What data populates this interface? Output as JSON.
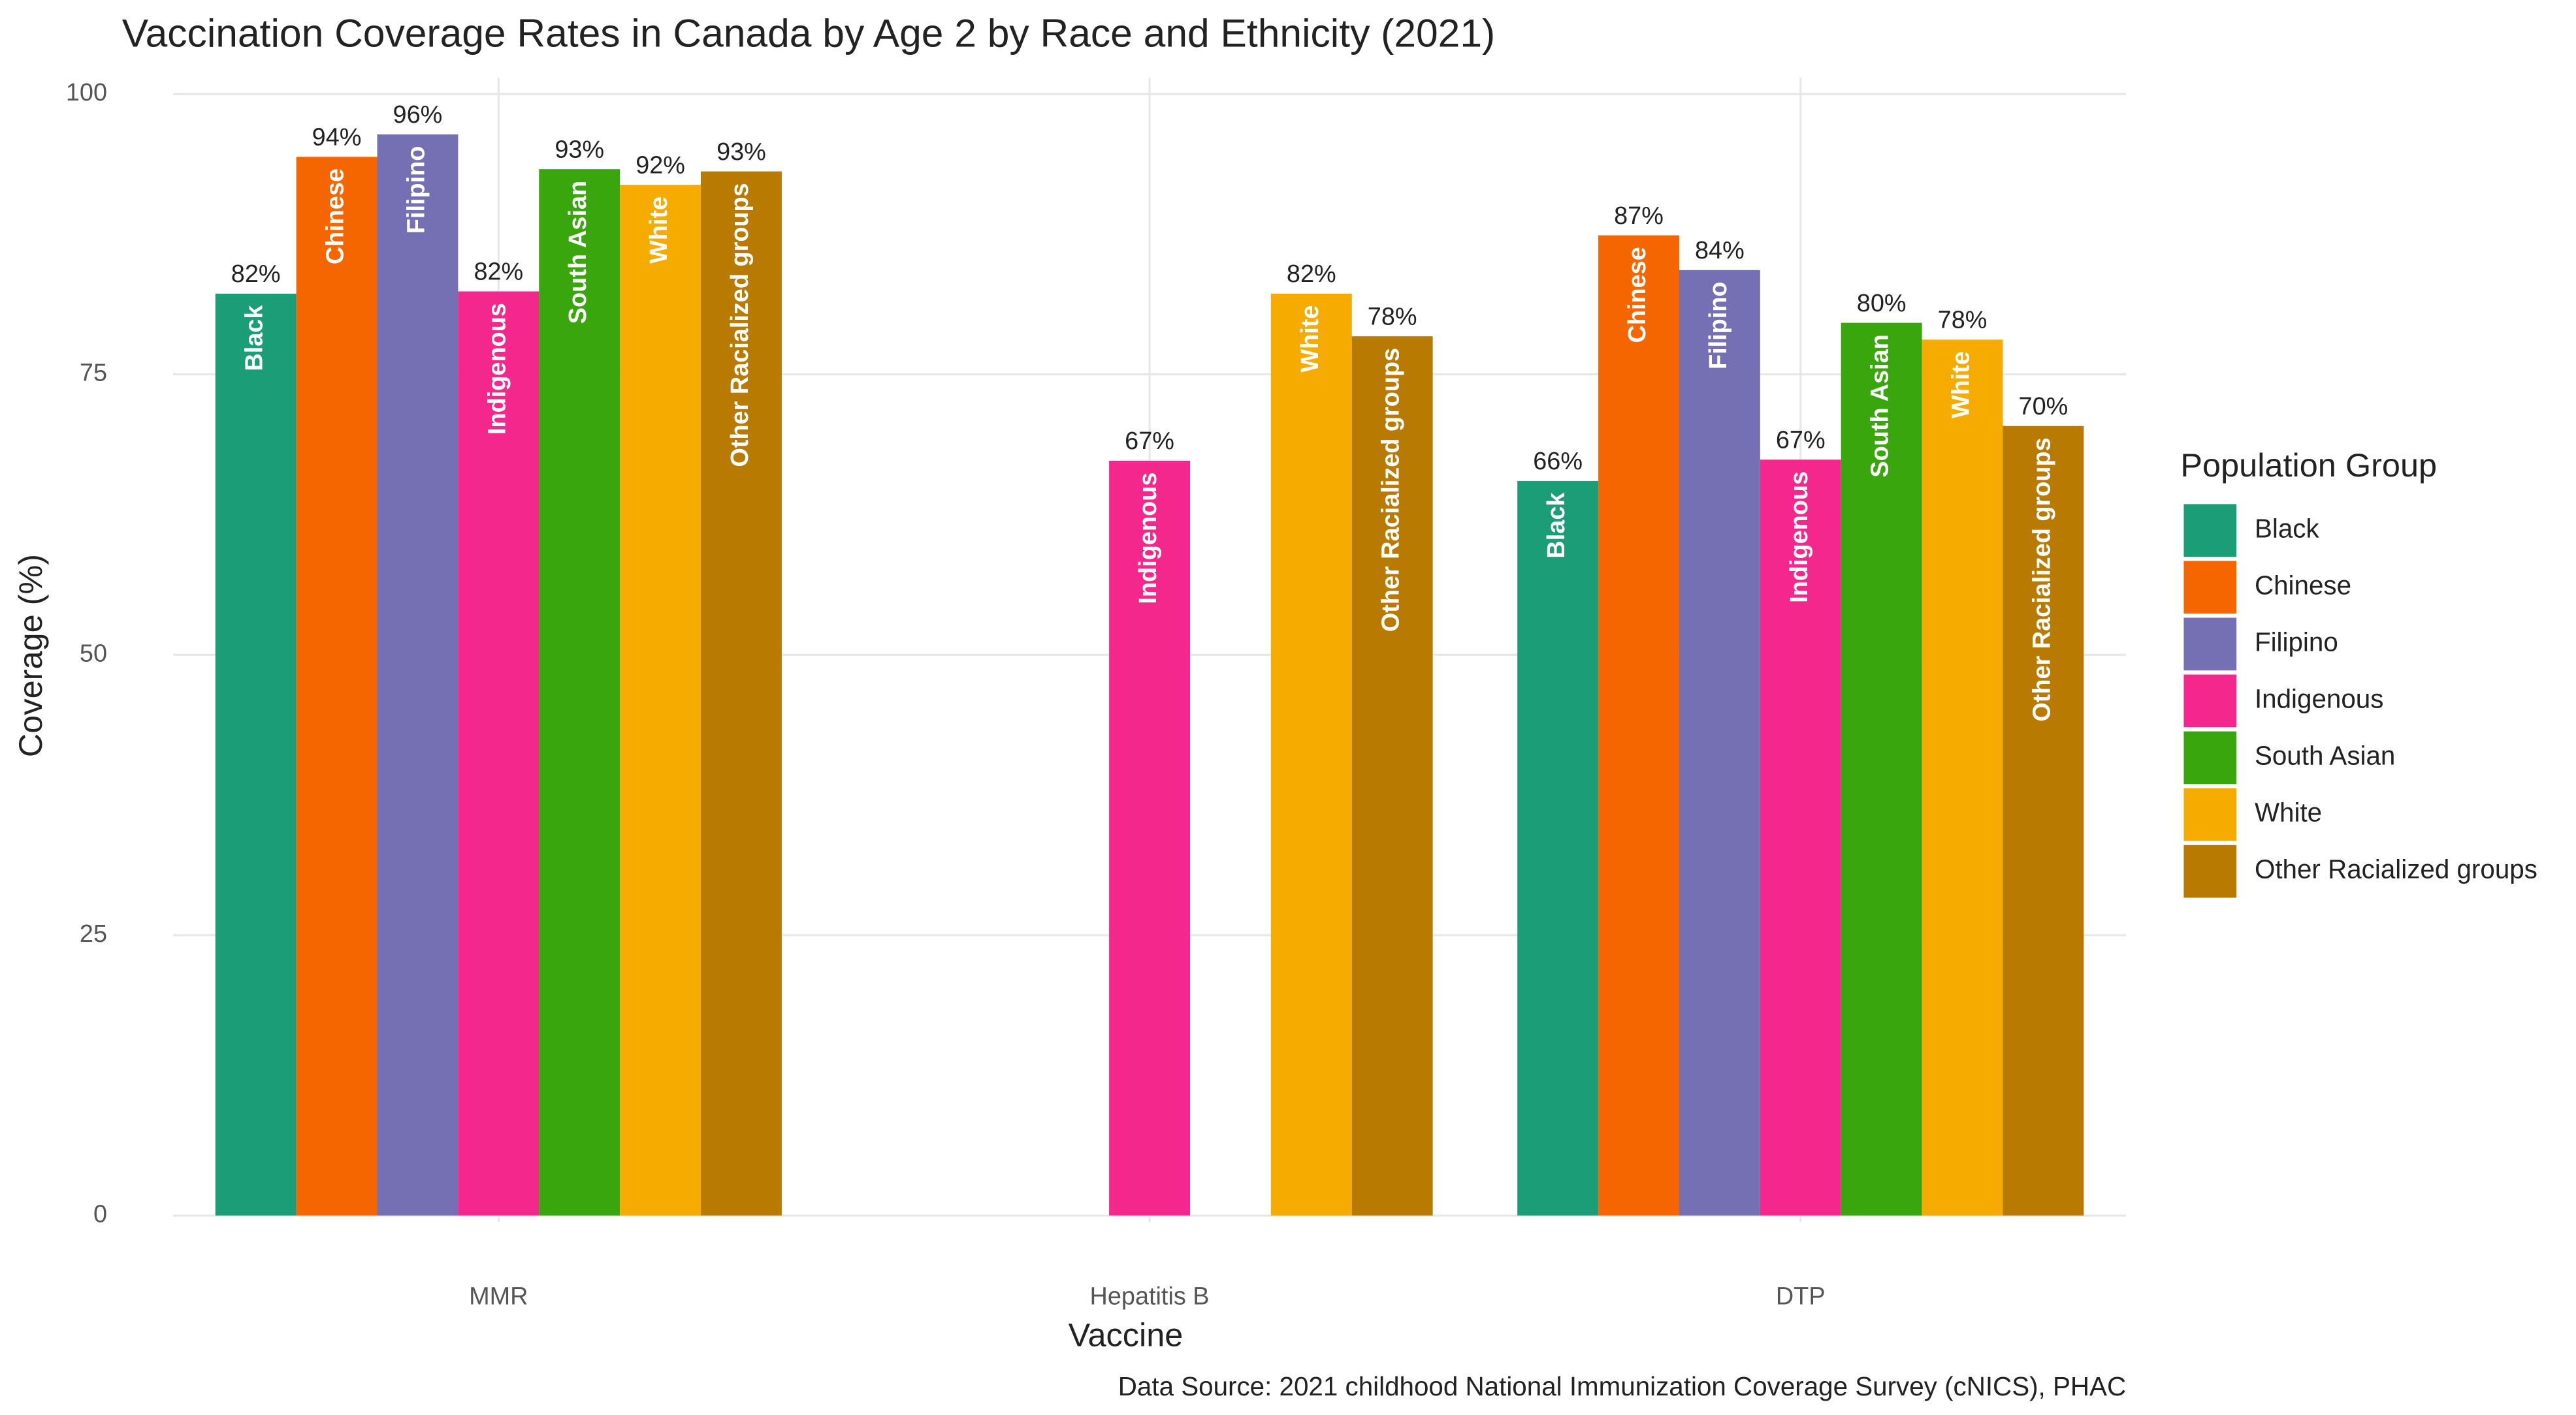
{
  "chart_data": {
    "type": "bar",
    "title": "Vaccination Coverage Rates in Canada by Age 2 by Race and Ethnicity (2021)",
    "x_label": "Vaccine",
    "y_label": "Coverage (%)",
    "caption": "Data Source: 2021 childhood National Immunization Coverage Survey (cNICS), PHAC",
    "legend_title": "Population Group",
    "legend_position": "right",
    "grid": true,
    "categories": [
      "MMR",
      "Hepatitis B",
      "DTP"
    ],
    "ylim": [
      0,
      100
    ],
    "yticks": [
      0,
      25,
      50,
      75,
      100
    ],
    "series": [
      {
        "name": "Black",
        "color": "#1b9e77",
        "values": [
          82.2,
          null,
          65.5
        ],
        "value_labels": [
          "82%",
          null,
          "66%"
        ]
      },
      {
        "name": "Chinese",
        "color": "#f56600",
        "values": [
          94.4,
          null,
          87.4
        ],
        "value_labels": [
          "94%",
          null,
          "87%"
        ]
      },
      {
        "name": "Filipino",
        "color": "#7570b3",
        "values": [
          96.4,
          null,
          84.3
        ],
        "value_labels": [
          "96%",
          null,
          "84%"
        ]
      },
      {
        "name": "Indigenous",
        "color": "#f4288c",
        "values": [
          82.4,
          67.3,
          67.4
        ],
        "value_labels": [
          "82%",
          "67%",
          "67%"
        ]
      },
      {
        "name": "South Asian",
        "color": "#3aa60e",
        "values": [
          93.3,
          null,
          79.6
        ],
        "value_labels": [
          "93%",
          null,
          "80%"
        ]
      },
      {
        "name": "White",
        "color": "#f5ab00",
        "values": [
          91.9,
          82.2,
          78.1
        ],
        "value_labels": [
          "92%",
          "82%",
          "78%"
        ]
      },
      {
        "name": "Other Racialized groups",
        "color": "#b87a00",
        "values": [
          93.1,
          78.4,
          70.4
        ],
        "value_labels": [
          "93%",
          "78%",
          "70%"
        ]
      }
    ]
  }
}
